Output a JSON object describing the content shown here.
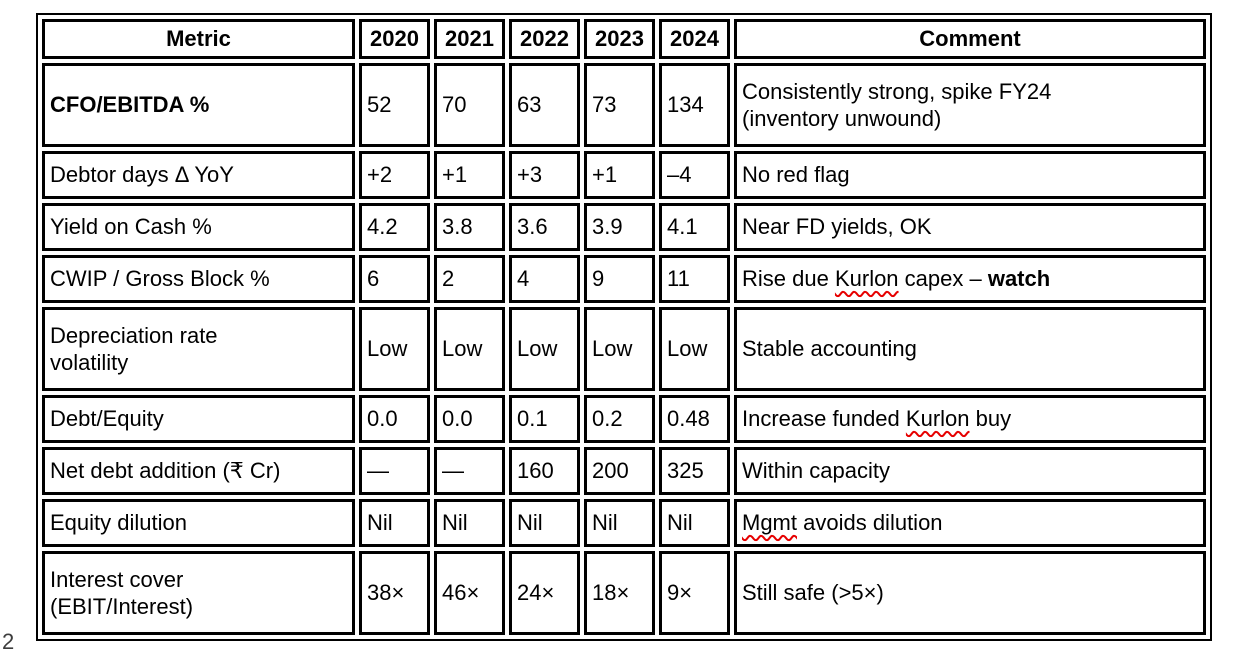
{
  "page": {
    "corner_fragment": "2"
  },
  "table": {
    "headers": [
      "Metric",
      "2020",
      "2021",
      "2022",
      "2023",
      "2024",
      "Comment"
    ],
    "rows": [
      {
        "metric": "CFO/EBITDA %",
        "metric_bold": true,
        "values": [
          "52",
          "70",
          "63",
          "73",
          "134"
        ],
        "comment_parts": [
          {
            "text": "Consistently strong, spike FY24\n(inventory unwound)"
          }
        ]
      },
      {
        "metric": "Debtor days Δ YoY",
        "metric_bold": false,
        "values": [
          "+2",
          "+1",
          "+3",
          "+1",
          "–4"
        ],
        "comment_parts": [
          {
            "text": "No red flag"
          }
        ]
      },
      {
        "metric": "Yield on Cash %",
        "metric_bold": false,
        "values": [
          "4.2",
          "3.8",
          "3.6",
          "3.9",
          "4.1"
        ],
        "comment_parts": [
          {
            "text": "Near FD yields, OK"
          }
        ]
      },
      {
        "metric": "CWIP / Gross Block %",
        "metric_bold": false,
        "values": [
          "6",
          "2",
          "4",
          "9",
          "11"
        ],
        "comment_parts": [
          {
            "text": "Rise due "
          },
          {
            "text": "Kurlon",
            "style": "squiggle"
          },
          {
            "text": " capex – "
          },
          {
            "text": "watch",
            "style": "bold"
          }
        ]
      },
      {
        "metric": "Depreciation rate\nvolatility",
        "metric_bold": false,
        "values": [
          "Low",
          "Low",
          "Low",
          "Low",
          "Low"
        ],
        "comment_parts": [
          {
            "text": "Stable accounting"
          }
        ]
      },
      {
        "metric": "Debt/Equity",
        "metric_bold": false,
        "values": [
          "0.0",
          "0.0",
          "0.1",
          "0.2",
          "0.48"
        ],
        "comment_parts": [
          {
            "text": "Increase funded "
          },
          {
            "text": "Kurlon",
            "style": "squiggle"
          },
          {
            "text": " buy"
          }
        ]
      },
      {
        "metric": "Net debt addition (₹ Cr)",
        "metric_bold": false,
        "values": [
          "—",
          "—",
          "160",
          "200",
          "325"
        ],
        "comment_parts": [
          {
            "text": "Within capacity"
          }
        ]
      },
      {
        "metric": "Equity dilution",
        "metric_bold": false,
        "values": [
          "Nil",
          "Nil",
          "Nil",
          "Nil",
          "Nil"
        ],
        "comment_parts": [
          {
            "text": "Mgmt",
            "style": "squiggle"
          },
          {
            "text": " avoids dilution"
          }
        ]
      },
      {
        "metric": "Interest cover\n(EBIT/Interest)",
        "metric_bold": false,
        "values": [
          "38×",
          "46×",
          "24×",
          "18×",
          "9×"
        ],
        "comment_parts": [
          {
            "text": "Still safe (>5×)"
          }
        ]
      }
    ]
  }
}
